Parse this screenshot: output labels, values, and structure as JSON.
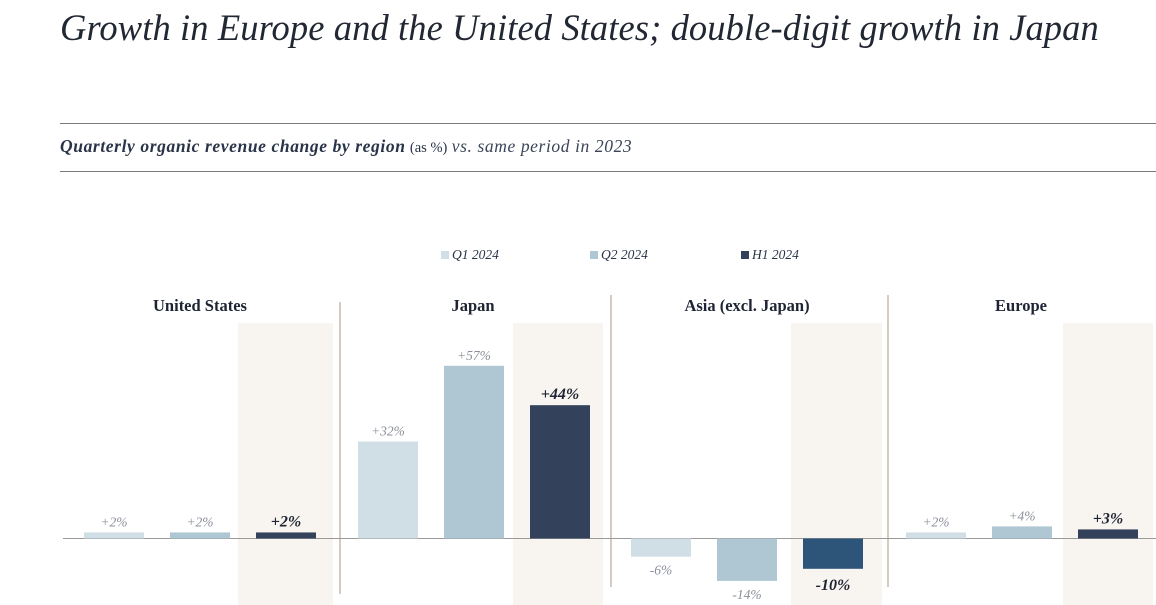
{
  "headline": "Growth in Europe and the United States; double-digit growth in Japan",
  "subtitle": {
    "bold": "Quarterly organic revenue change by region",
    "unit": "(as %)",
    "period": "vs. same period in 2023"
  },
  "colors": {
    "q1": "#d0dfe5",
    "q2": "#afc7d3",
    "h1": "#34415b",
    "h1_asia": "#2d5579",
    "highlight_panel": "#f8f5f0",
    "divider": "#a8987a",
    "baseline": "#9a9a9a"
  },
  "chart_data": {
    "type": "bar",
    "categories": [
      "United States",
      "Japan",
      "Asia (excl. Japan)",
      "Europe"
    ],
    "series": [
      {
        "name": "Q1 2024",
        "values": [
          2,
          32,
          -6,
          2
        ],
        "labels": [
          "+2%",
          "+32%",
          "-6%",
          "+2%"
        ]
      },
      {
        "name": "Q2 2024",
        "values": [
          2,
          57,
          -14,
          4
        ],
        "labels": [
          "+2%",
          "+57%",
          "-14%",
          "+4%"
        ]
      },
      {
        "name": "H1 2024",
        "values": [
          2,
          44,
          -10,
          3
        ],
        "labels": [
          "+2%",
          "+44%",
          "-10%",
          "+3%"
        ]
      }
    ],
    "legend": "top-center",
    "ylim": [
      -20,
      70
    ],
    "grid": false
  }
}
